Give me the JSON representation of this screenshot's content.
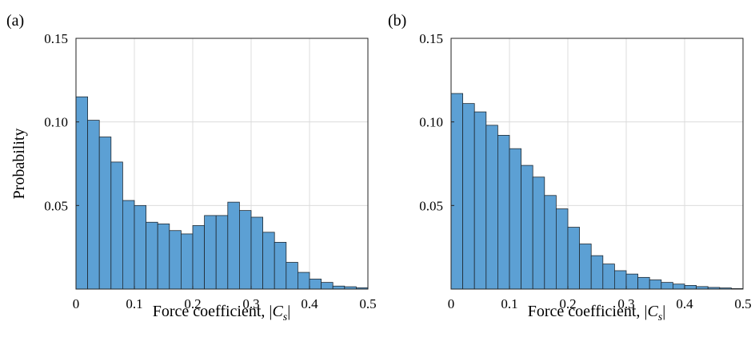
{
  "chart_data": [
    {
      "type": "bar",
      "panel_label": "(a)",
      "xlabel": "Force coefficient, |C_s|",
      "ylabel": "Probability",
      "xlim": [
        0,
        0.5
      ],
      "ylim": [
        0,
        0.15
      ],
      "xticks": [
        "0",
        "0.1",
        "0.2",
        "0.3",
        "0.4",
        "0.5"
      ],
      "yticks": [
        "0.05",
        "0.10",
        "0.15"
      ],
      "grid": true,
      "bin_width": 0.02,
      "bar_color": "#5ca0d4",
      "values": [
        0.115,
        0.101,
        0.091,
        0.076,
        0.053,
        0.05,
        0.04,
        0.039,
        0.035,
        0.033,
        0.038,
        0.044,
        0.044,
        0.052,
        0.047,
        0.043,
        0.034,
        0.028,
        0.016,
        0.01,
        0.006,
        0.004,
        0.0018,
        0.0014,
        0.0008
      ]
    },
    {
      "type": "bar",
      "panel_label": "(b)",
      "xlabel": "Force coefficient, |C_s|",
      "ylabel": "",
      "xlim": [
        0,
        0.5
      ],
      "ylim": [
        0,
        0.15
      ],
      "xticks": [
        "0",
        "0.1",
        "0.2",
        "0.3",
        "0.4",
        "0.5"
      ],
      "yticks": [
        "0.05",
        "0.10",
        "0.15"
      ],
      "grid": true,
      "bin_width": 0.02,
      "bar_color": "#5ca0d4",
      "values": [
        0.117,
        0.111,
        0.106,
        0.098,
        0.092,
        0.084,
        0.074,
        0.067,
        0.056,
        0.048,
        0.037,
        0.027,
        0.02,
        0.015,
        0.011,
        0.009,
        0.007,
        0.0055,
        0.004,
        0.003,
        0.0022,
        0.0015,
        0.001,
        0.0007,
        0.0003
      ]
    }
  ]
}
